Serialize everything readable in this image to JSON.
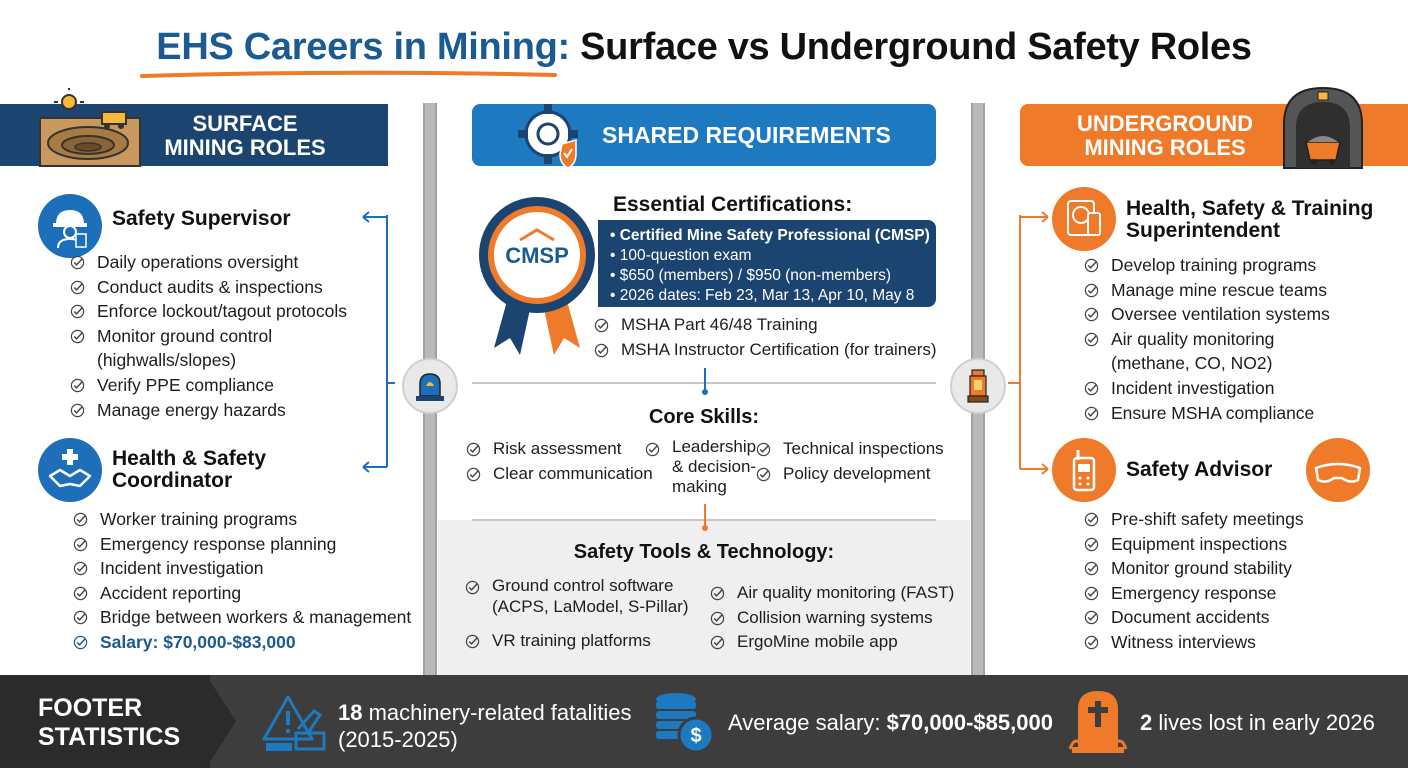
{
  "title": {
    "part1": "EHS Careers in Mining:",
    "part2": "Surface vs Underground Safety Roles"
  },
  "surface": {
    "header": "SURFACE MINING ROLES",
    "roles": [
      {
        "title": "Safety Supervisor",
        "icon": "hard-hat-worker-icon",
        "items": [
          "Daily operations oversight",
          "Conduct audits & inspections",
          "Enforce lockout/tagout protocols",
          "Monitor ground control (highwalls/slopes)",
          "Verify PPE compliance",
          "Manage energy hazards"
        ]
      },
      {
        "title": "Health & Safety Coordinator",
        "icon": "handshake-icon",
        "items": [
          "Worker training programs",
          "Emergency response planning",
          "Incident investigation",
          "Accident reporting",
          "Bridge between workers & management"
        ],
        "salary": "Salary: $70,000-$83,000"
      }
    ]
  },
  "shared": {
    "header": "SHARED REQUIREMENTS",
    "cert_title": "Essential Certifications:",
    "badge_text": "CMSP",
    "cmsp": [
      "Certified Mine Safety Professional (CMSP)",
      "100-question exam",
      "$650 (members) / $950 (non-members)",
      "2026 dates: Feb 23, Mar 13, Apr 10, May 8"
    ],
    "other_certs": [
      "MSHA Part 46/48 Training",
      "MSHA Instructor Certification (for trainers)"
    ],
    "skills_title": "Core Skills:",
    "skills_col1": [
      "Risk assessment",
      "Clear communication"
    ],
    "skills_col2": "Leadership & decision-making",
    "skills_col3": [
      "Technical inspections",
      "Policy development"
    ],
    "tools_title": "Safety Tools & Technology:",
    "tools_col1": [
      "Ground control software (ACPS, LaModel, S-Pillar)",
      "VR training platforms"
    ],
    "tools_col2": [
      "Air quality monitoring (FAST)",
      "Collision warning systems",
      "ErgoMine mobile app"
    ]
  },
  "underground": {
    "header": "UNDERGROUND MINING ROLES",
    "roles": [
      {
        "title": "Health, Safety & Training Superintendent",
        "icon": "gas-detector-icon",
        "items": [
          "Develop training programs",
          "Manage mine rescue teams",
          "Oversee ventilation systems",
          "Air quality monitoring (methane, CO, NO2)",
          "Incident investigation",
          "Ensure MSHA compliance"
        ]
      },
      {
        "title": "Safety Advisor",
        "icon": "radio-icon",
        "items": [
          "Pre-shift safety meetings",
          "Equipment inspections",
          "Monitor ground stability",
          "Emergency response",
          "Document accidents",
          "Witness interviews"
        ]
      }
    ]
  },
  "footer": {
    "label": "FOOTER STATISTICS",
    "stat1_bold": "18",
    "stat1_text": "machinery-related fatalities (2015-2025)",
    "stat2_text": "Average salary:",
    "stat2_bold": "$70,000-$85,000",
    "stat3_bold": "2",
    "stat3_text": "lives lost in early 2026"
  },
  "colors": {
    "navy": "#1c4470",
    "blue": "#1d7ac0",
    "orange": "#ee7a2a",
    "footer": "#3d3d3d"
  }
}
